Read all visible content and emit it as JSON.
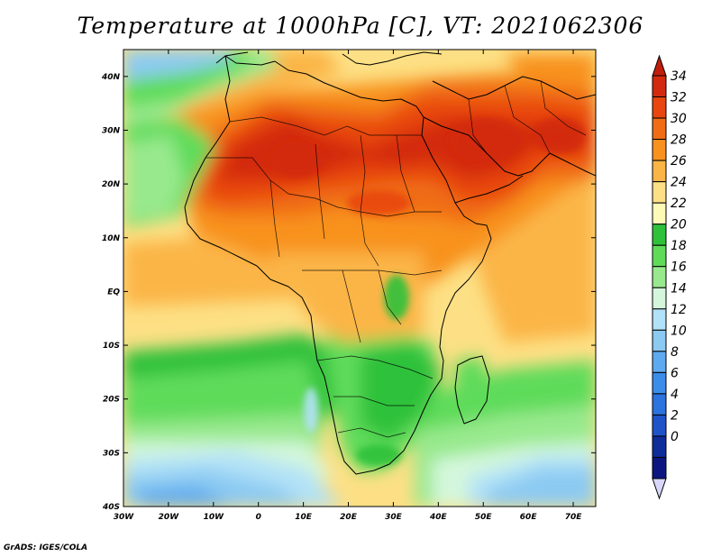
{
  "title": "Temperature at 1000hPa [C], VT: 2021062306",
  "credit": "GrADS: IGES/COLA",
  "map": {
    "lon_range": [
      -30,
      75
    ],
    "lat_range": [
      -40,
      45
    ],
    "lon_ticks": [
      "30W",
      "20W",
      "10W",
      "0",
      "10E",
      "20E",
      "30E",
      "40E",
      "50E",
      "60E",
      "70E"
    ],
    "lat_ticks": [
      "40N",
      "30N",
      "20N",
      "10N",
      "EQ",
      "10S",
      "20S",
      "30S",
      "40S"
    ]
  },
  "colorbar": {
    "levels": [
      "34",
      "32",
      "30",
      "28",
      "26",
      "24",
      "22",
      "20",
      "18",
      "16",
      "14",
      "12",
      "10",
      "8",
      "6",
      "4",
      "2",
      "0"
    ],
    "colors": [
      "#d32a0f",
      "#e8460e",
      "#f06d16",
      "#f8921f",
      "#fbb547",
      "#fde085",
      "#fdf9b6",
      "#2fc13a",
      "#5fdb5a",
      "#98e98d",
      "#d4f7dc",
      "#b2e2f7",
      "#8ccaf2",
      "#5eaaf0",
      "#3a8eea",
      "#2b73de",
      "#1f54c9",
      "#0f2d9a",
      "#0d1680"
    ],
    "top_arrow_color": "#c21d0c",
    "bottom_arrow_color": "#d8d6fb"
  }
}
